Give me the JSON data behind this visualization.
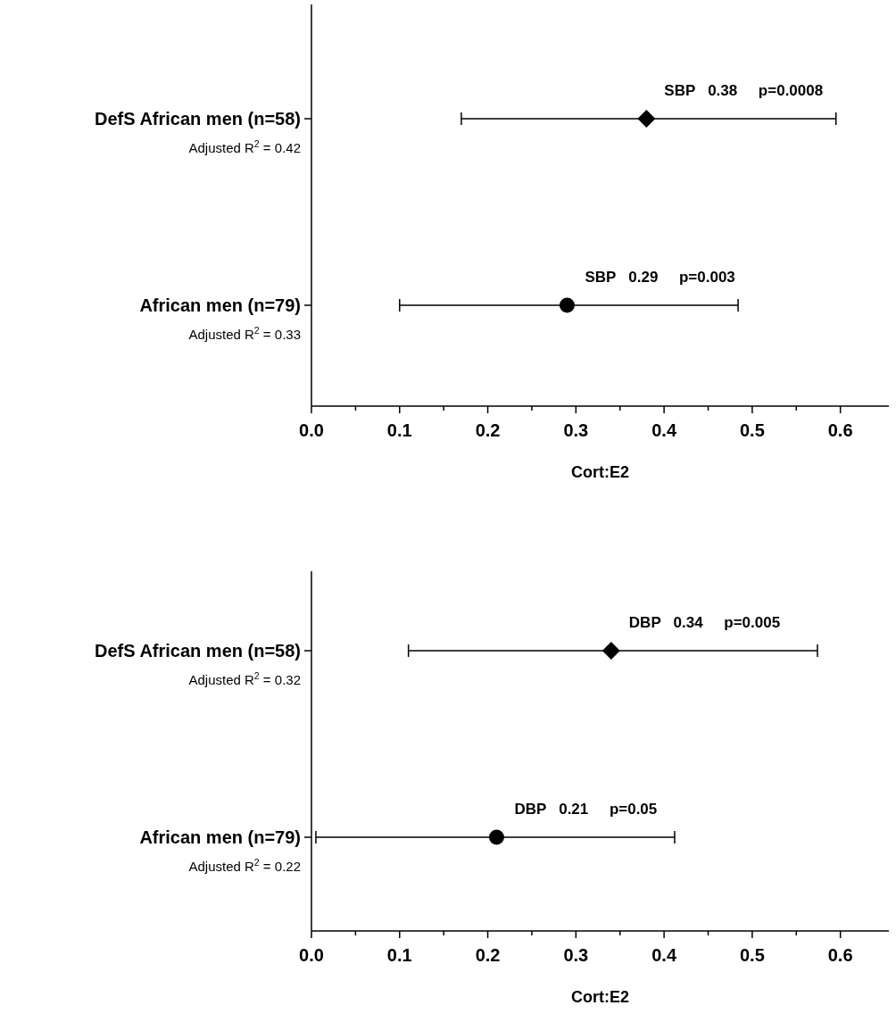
{
  "chart_data": [
    {
      "type": "scatter",
      "orientation": "horizontal",
      "categories": [
        "DefS African men (n=58)",
        "African men (n=79)"
      ],
      "series": [
        {
          "color": "#000000",
          "marker": "diamond",
          "values": [
            0.38,
            null
          ],
          "errors": [
            [
              0.17,
              0.595
            ],
            null
          ]
        },
        {
          "color": "#000000",
          "marker": "circle",
          "values": [
            null,
            0.29
          ],
          "errors": [
            null,
            [
              0.1,
              0.484
            ]
          ]
        }
      ],
      "xlabel": "Cort:E2",
      "xlim": [
        0,
        0.655
      ],
      "xticks": [
        {
          "value": 0,
          "label": "0.0"
        },
        {
          "value": 0.05,
          "label": null
        },
        0.1,
        {
          "value": 0.15,
          "label": null
        },
        0.2,
        {
          "value": 0.25,
          "label": null
        },
        0.3,
        {
          "value": 0.35,
          "label": null
        },
        0.4,
        {
          "value": 0.45,
          "label": null
        },
        0.5,
        {
          "value": 0.55,
          "label": null
        },
        0.6
      ],
      "annotations": [
        "SBP   0.38     p=0.0008",
        "SBP   0.29     p=0.003",
        "Adjusted R$^{2}$ = 0.42",
        "Adjusted R$^{2}$ = 0.33"
      ],
      "grid": false
    },
    {
      "type": "scatter",
      "orientation": "horizontal",
      "categories": [
        "DefS African men (n=58)",
        "African men (n=79)"
      ],
      "series": [
        {
          "color": "#000000",
          "marker": "diamond",
          "values": [
            0.34,
            null
          ],
          "errors": [
            [
              0.11,
              0.574
            ],
            null
          ]
        },
        {
          "color": "#000000",
          "marker": "circle",
          "values": [
            null,
            0.21
          ],
          "errors": [
            null,
            [
              0.005,
              0.412
            ]
          ]
        }
      ],
      "xlabel": "Cort:E2",
      "xlim": [
        0,
        0.655
      ],
      "xticks": [
        {
          "value": 0,
          "label": "0.0"
        },
        {
          "value": 0.05,
          "label": null
        },
        0.1,
        {
          "value": 0.15,
          "label": null
        },
        0.2,
        {
          "value": 0.25,
          "label": null
        },
        0.3,
        {
          "value": 0.35,
          "label": null
        },
        0.4,
        {
          "value": 0.45,
          "label": null
        },
        0.5,
        {
          "value": 0.55,
          "label": null
        },
        0.6
      ],
      "annotations": [
        "DBP   0.34     p=0.005",
        "DBP   0.21     p=0.05",
        "Adjusted R$^{2}$ = 0.32",
        "Adjusted R$^{2}$ = 0.22"
      ],
      "grid": false
    }
  ]
}
